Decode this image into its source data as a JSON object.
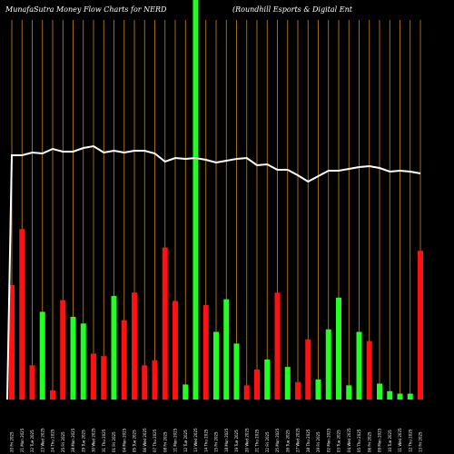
{
  "header": {
    "title_left": "MunafaSutra  Money Flow  Charts for NERD",
    "title_right": "(Roundhill Esports & Digital Ent"
  },
  "colors": {
    "background": "#000000",
    "up": "#22ff22",
    "down": "#ff1111",
    "grid": "#c8881a",
    "line": "#ffffff"
  },
  "chart_data": {
    "type": "bar",
    "title": "MunafaSutra  Money Flow  Charts for NERD (Roundhill Esports & Digital Ent",
    "grid": true,
    "categories": [
      "20 Fri 2025",
      "21 Mon 2025",
      "22 Tue 2025",
      "23 Wed 2025",
      "24 Thu 2025",
      "25 Fri 2025",
      "28 Mon 2025",
      "29 Tue 2025",
      "30 Wed 2025",
      "31 Thu 2025",
      "01 Fri 2025",
      "04 Mon 2025",
      "05 Tue 2025",
      "06 Wed 2025",
      "07 Thu 2025",
      "08 Fri 2025",
      "11 Mon 2025",
      "12 Tue 2025",
      "13 Wed 2025",
      "14 Thu 2025",
      "15 Fri 2025",
      "18 Mon 2025",
      "19 Tue 2025",
      "20 Wed 2025",
      "21 Thu 2025",
      "22 Fri 2025",
      "25 Mon 2025",
      "26 Tue 2025",
      "27 Wed 2025",
      "28 Thu 2025",
      "29 Fri 2025",
      "02 Mon 2025",
      "03 Tue 2025",
      "04 Wed 2025",
      "05 Thu 2025",
      "06 Fri 2025",
      "09 Mon 2025",
      "10 Tue 2025",
      "11 Wed 2025",
      "12 Thu 2025",
      "13 Fri 2025"
    ],
    "series": [
      {
        "values": [
          137,
          204,
          41,
          105,
          11,
          119,
          99,
          91,
          55,
          52,
          124,
          95,
          128,
          41,
          47,
          182,
          118,
          18,
          500,
          113,
          81,
          120,
          67,
          17,
          36,
          48,
          128,
          39,
          21,
          72,
          24,
          84,
          122,
          17,
          81,
          70,
          19,
          10,
          7,
          7,
          178
        ],
        "directions": [
          "down",
          "down",
          "down",
          "up",
          "down",
          "down",
          "up",
          "up",
          "down",
          "down",
          "up",
          "down",
          "down",
          "down",
          "down",
          "down",
          "down",
          "up",
          "up",
          "down",
          "up",
          "up",
          "up",
          "down",
          "down",
          "up",
          "down",
          "up",
          "down",
          "down",
          "up",
          "up",
          "up",
          "up",
          "up",
          "down",
          "up",
          "up",
          "up",
          "up",
          "down"
        ]
      },
      {
        "values": [
          269,
          269,
          272,
          271,
          276,
          273,
          273,
          277,
          279,
          272,
          274,
          272,
          274,
          274,
          271,
          262,
          266,
          265,
          266,
          264,
          261,
          263,
          265,
          266,
          258,
          259,
          253,
          253,
          247,
          240,
          246,
          252,
          252,
          254,
          256,
          257,
          255,
          251,
          252,
          251,
          249
        ]
      }
    ]
  }
}
